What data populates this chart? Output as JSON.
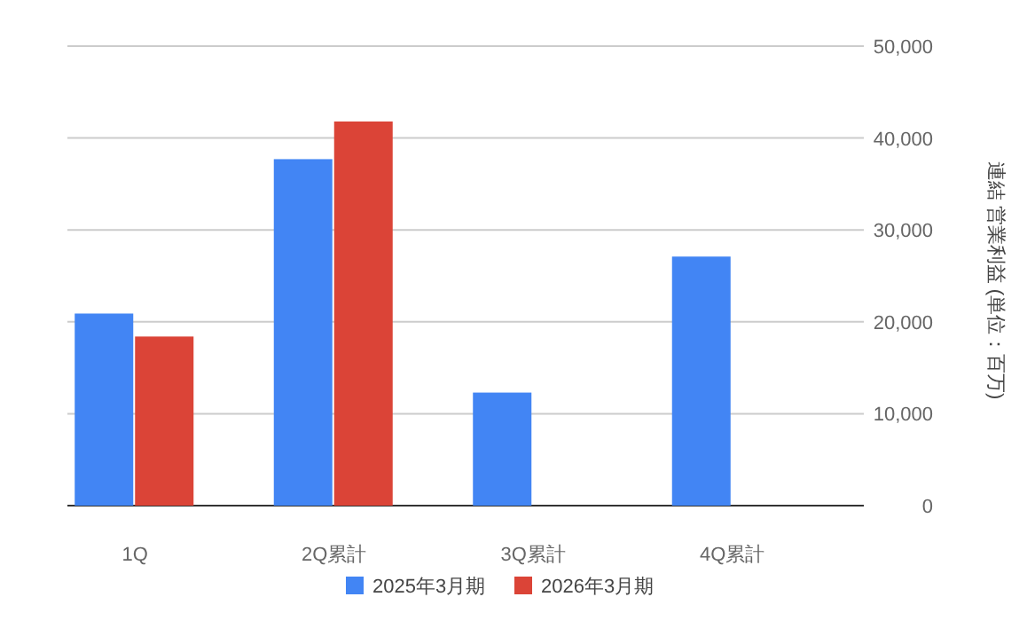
{
  "chart_data": {
    "type": "bar",
    "categories": [
      "1Q",
      "2Q累計",
      "3Q累計",
      "4Q累計"
    ],
    "series": [
      {
        "name": "2025年3月期",
        "color": "#4285f4",
        "values": [
          20900,
          37700,
          12300,
          27100
        ]
      },
      {
        "name": "2026年3月期",
        "color": "#db4437",
        "values": [
          18400,
          41800,
          null,
          null
        ]
      }
    ],
    "ylim": [
      0,
      50000
    ],
    "yticks": [
      0,
      {
        "value": 10000,
        "label": "10,000"
      },
      {
        "value": 20000,
        "label": "20,000"
      },
      {
        "value": 30000,
        "label": "30,000"
      },
      {
        "value": 40000,
        "label": "40,000"
      },
      {
        "value": 50000,
        "label": "50,000"
      }
    ],
    "ylabel": "連結 営業利益 (単位：百万)",
    "grid": "y",
    "legend": "bottom"
  }
}
